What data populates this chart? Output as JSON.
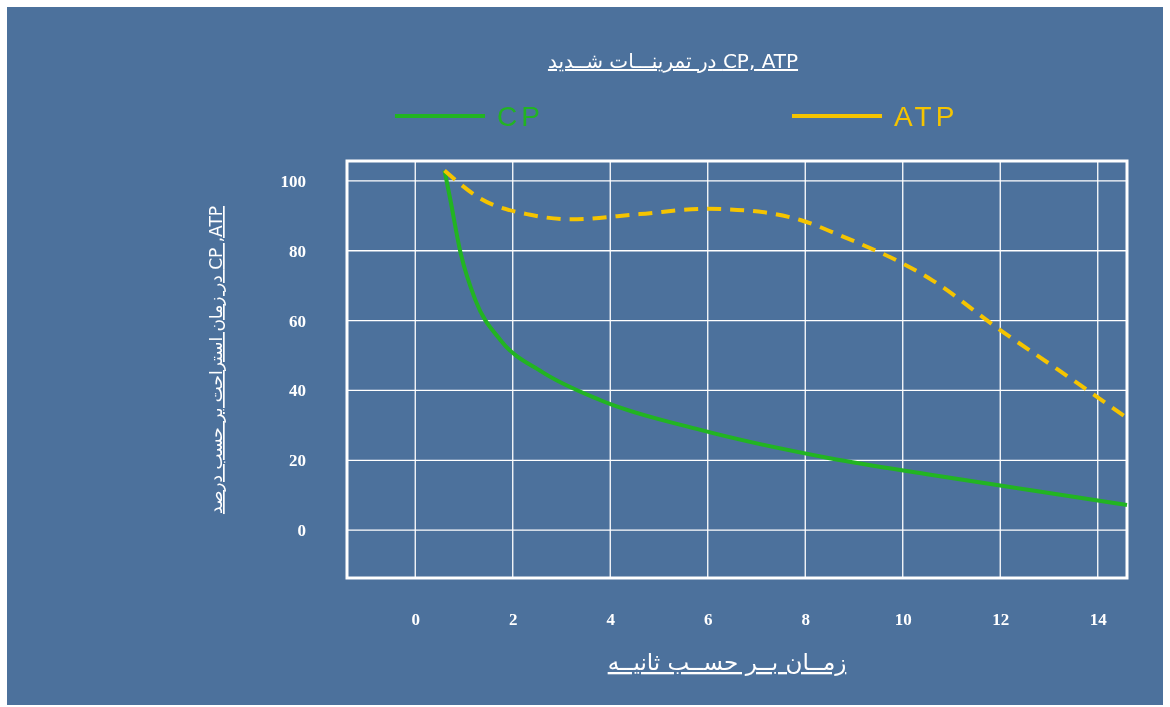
{
  "chart_data": {
    "type": "line",
    "title": "CP, ATP در تمرینـــات شــدید",
    "xlabel": "زمــان بــر حســب ثانیــه",
    "ylabel": "CP ,ATP در زمان استراحت بر حسب درصد",
    "xlim": [
      -1.4,
      14.6
    ],
    "ylim": [
      -13.7,
      105.7
    ],
    "xticks": [
      0,
      2,
      4,
      6,
      8,
      10,
      12,
      14
    ],
    "yticks": [
      0,
      20,
      40,
      60,
      80,
      100
    ],
    "grid": true,
    "legend": "top",
    "marker": "none",
    "series": [
      {
        "name": "CP",
        "color": "#22b422",
        "line_style": "solid",
        "x": [
          0.6,
          0.72,
          0.92,
          1.23,
          1.75,
          2.6,
          3.8,
          5.85,
          8.5,
          10.6,
          12.6,
          14.6
        ],
        "values": [
          103,
          94.6,
          80,
          66,
          54.4,
          45.3,
          37.2,
          28.7,
          20.6,
          15.8,
          11.5,
          7.2
        ]
      },
      {
        "name": "ATP",
        "color": "#f5c400",
        "line_style": "dashed",
        "x": [
          0.6,
          1.33,
          2.36,
          3.2,
          4.6,
          5.95,
          6.9,
          7.9,
          8.7,
          10.6,
          12,
          13.2,
          14.6
        ],
        "values": [
          103,
          95,
          90.3,
          89,
          90.5,
          92,
          91.4,
          88.8,
          84.5,
          71.6,
          57.3,
          45.8,
          32.1
        ]
      }
    ]
  }
}
